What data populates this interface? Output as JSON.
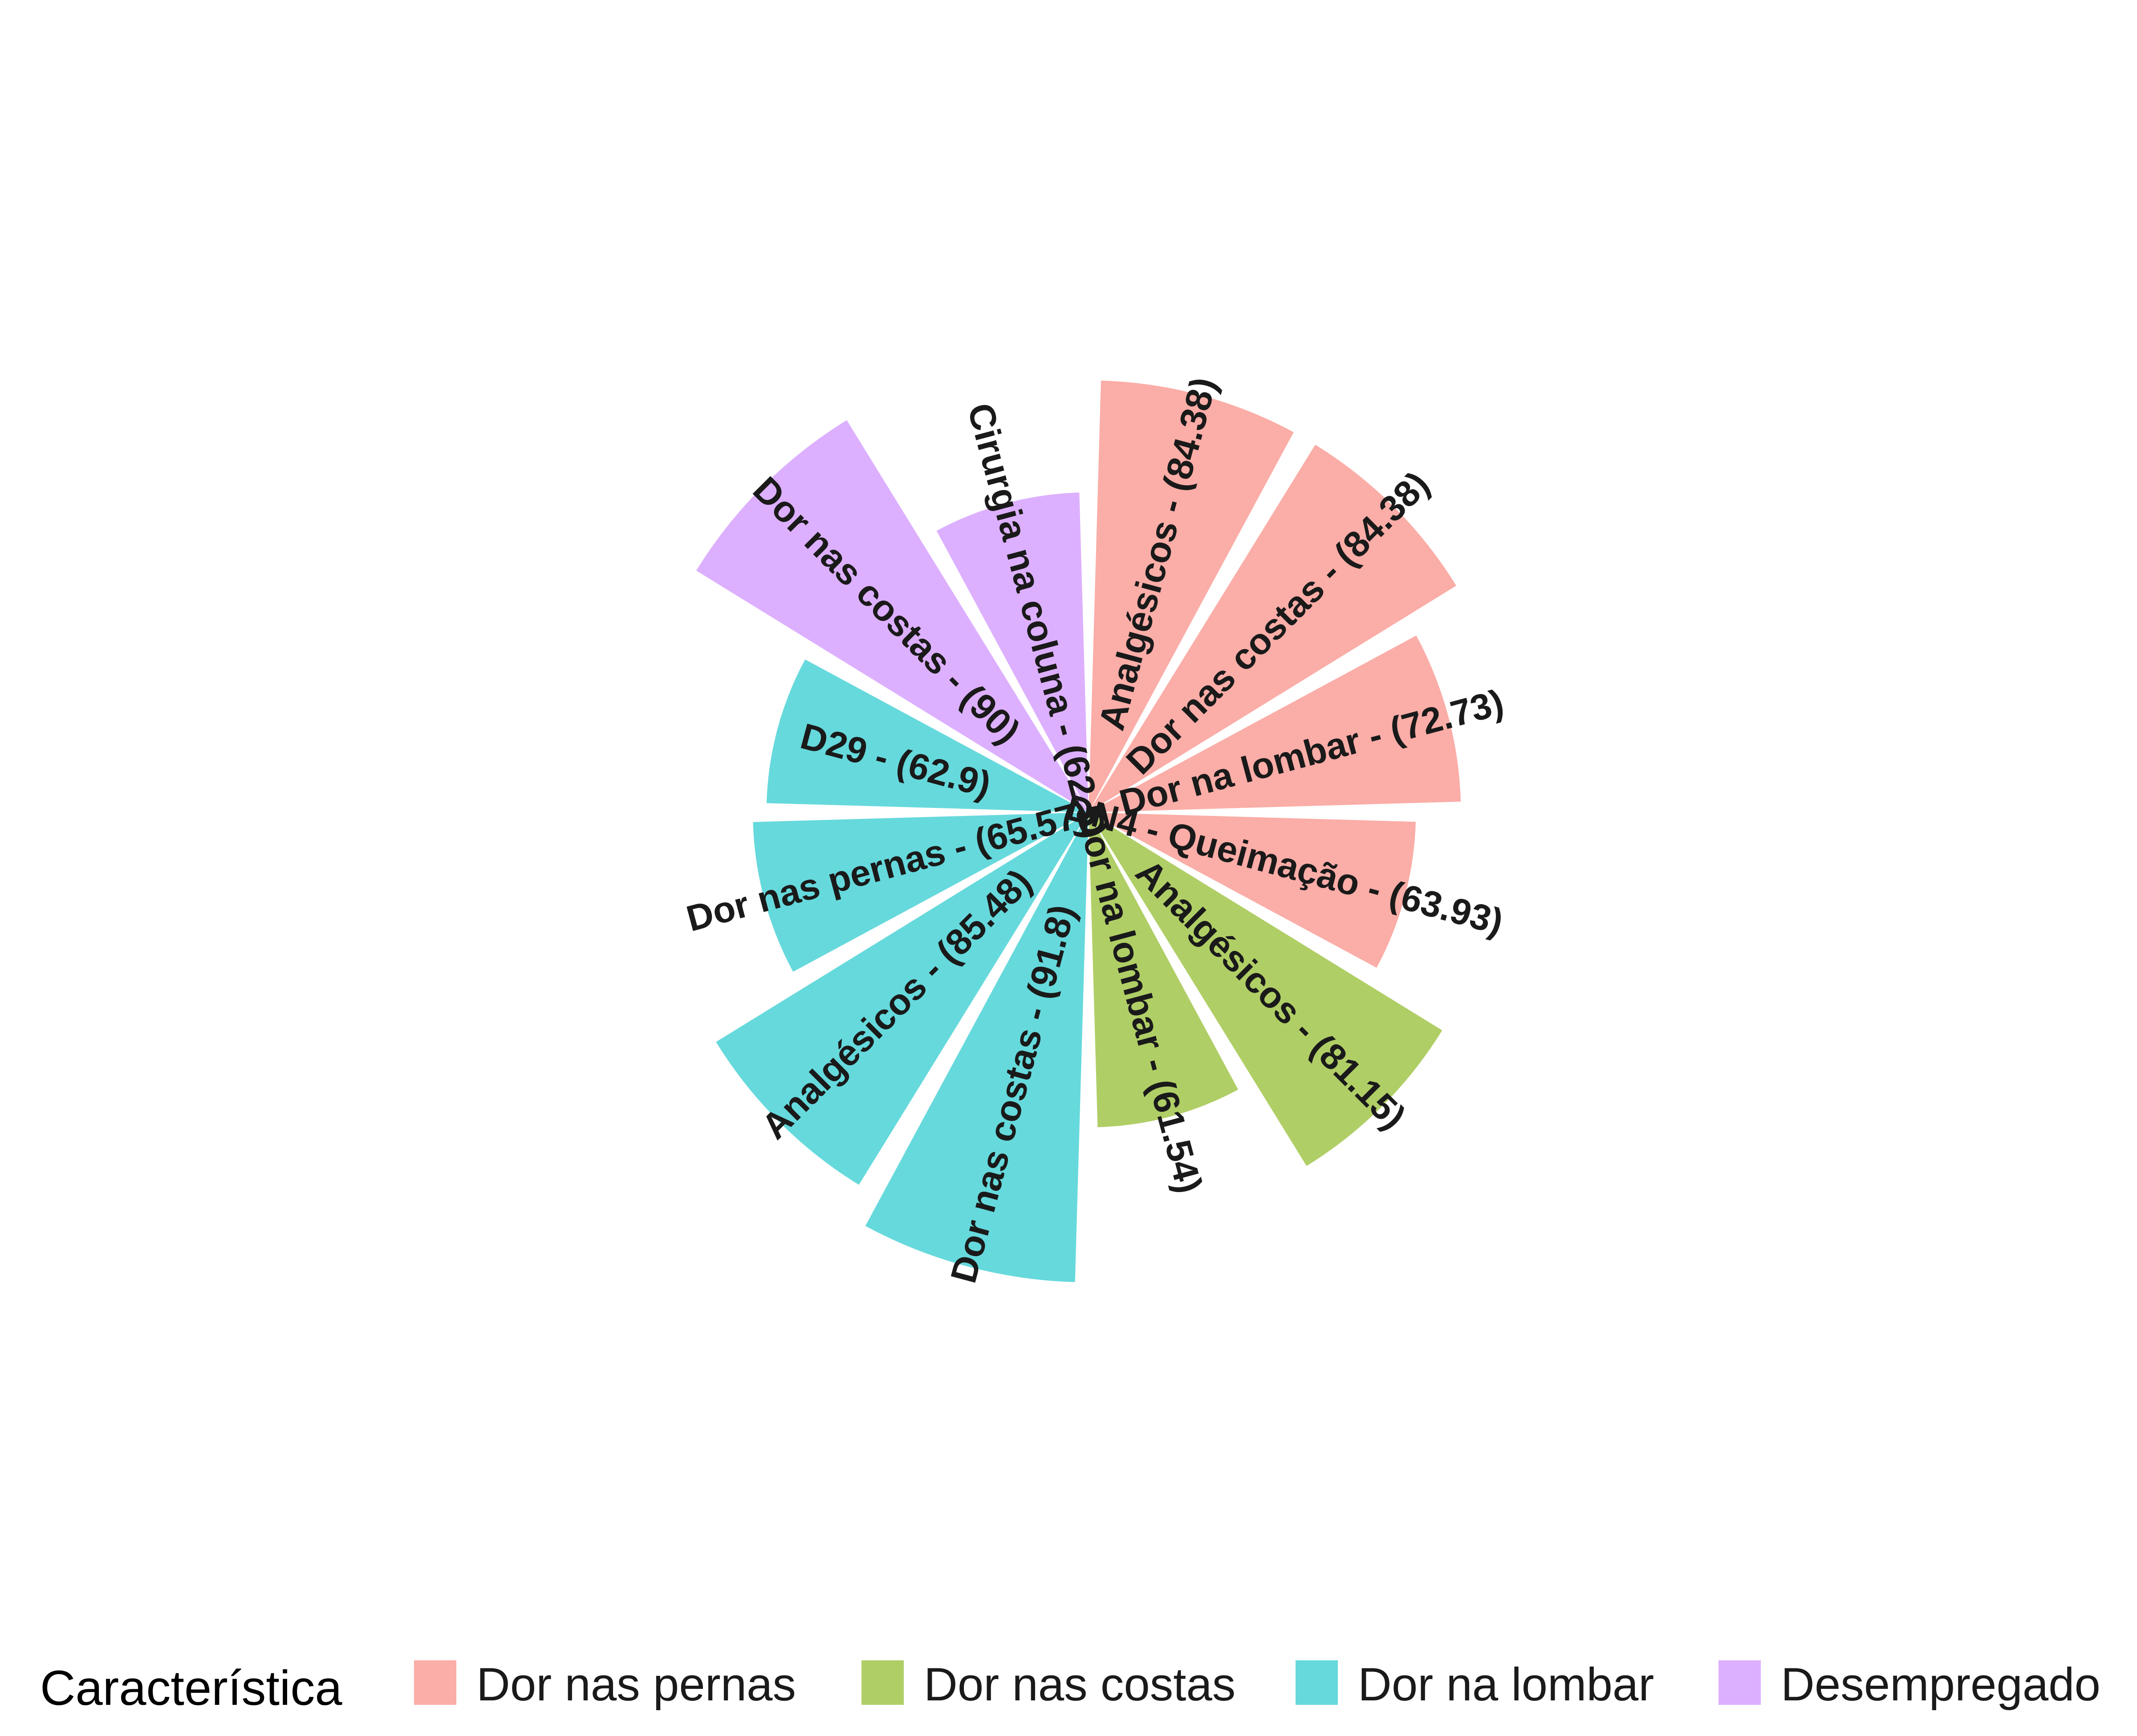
{
  "chart_data": {
    "type": "polar-bar",
    "ylim": [
      0,
      100
    ],
    "legend": {
      "position": "bottom",
      "title": "Característica",
      "entries": [
        {
          "name": "Dor nas pernas",
          "color": "#F8766D"
        },
        {
          "name": "Dor nas costas",
          "color": "#7CAE00"
        },
        {
          "name": "Dor na lombar",
          "color": "#00BFC4"
        },
        {
          "name": "Desempregado",
          "color": "#C77CFF"
        }
      ]
    },
    "bars": [
      {
        "label": "Analgésicos - (84.38)",
        "value": 84.38,
        "group": "Dor nas pernas"
      },
      {
        "label": "Dor nas costas - (84.38)",
        "value": 84.38,
        "group": "Dor nas pernas"
      },
      {
        "label": "Dor na lombar - (72.73)",
        "value": 72.73,
        "group": "Dor nas pernas"
      },
      {
        "label": "DN4 - Queimação - (63.93)",
        "value": 63.93,
        "group": "Dor nas pernas"
      },
      {
        "label": "Analgésicos - (81.15)",
        "value": 81.15,
        "group": "Dor nas costas"
      },
      {
        "label": "Dor na lombar - (61.54)",
        "value": 61.54,
        "group": "Dor nas costas"
      },
      {
        "label": "Dor nas costas - (91.8)",
        "value": 91.8,
        "group": "Dor na lombar"
      },
      {
        "label": "Analgésicos - (85.48)",
        "value": 85.48,
        "group": "Dor na lombar"
      },
      {
        "label": "Dor nas pernas - (65.57)",
        "value": 65.57,
        "group": "Dor na lombar"
      },
      {
        "label": "D29 - (62.9)",
        "value": 62.9,
        "group": "Dor na lombar"
      },
      {
        "label": "Dor nas costas - (90)",
        "value": 90,
        "group": "Desempregado"
      },
      {
        "label": "Cirurgia na coluna - (62.5)",
        "value": 62.5,
        "group": "Desempregado"
      }
    ]
  }
}
